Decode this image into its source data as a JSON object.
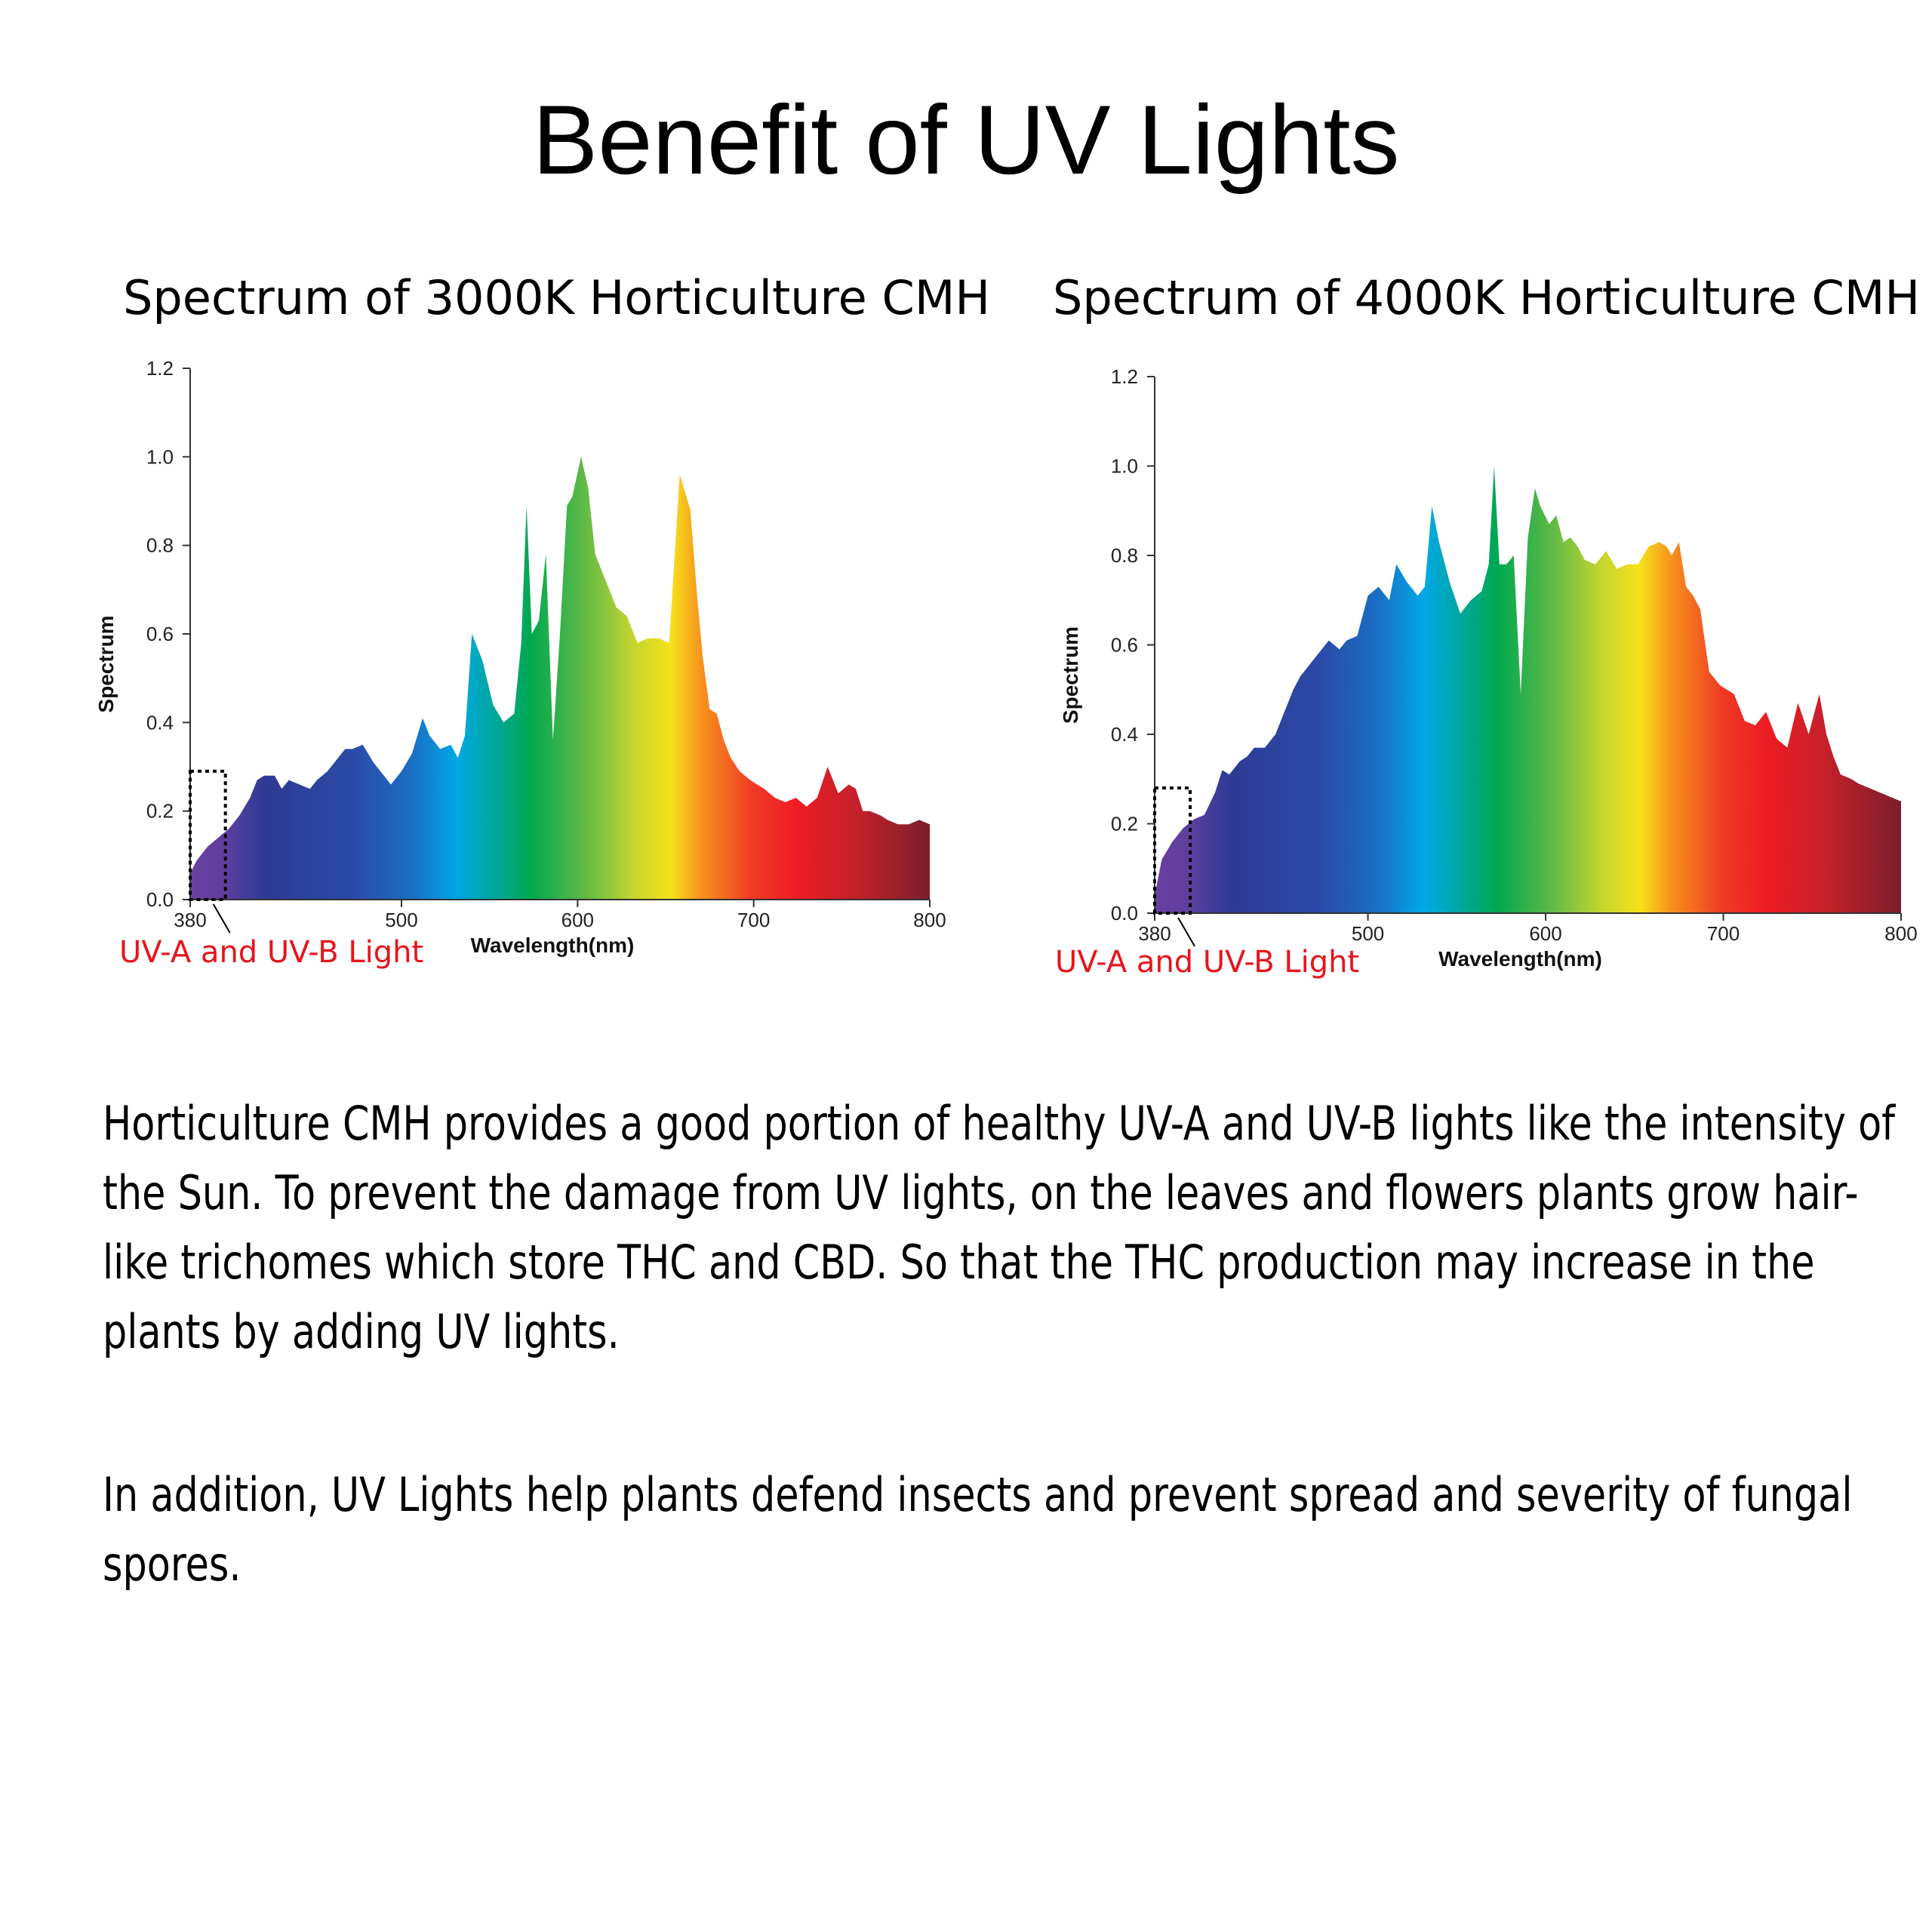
{
  "title": "Benefit of UV Lights",
  "paragraphs": [
    "Horticulture CMH provides a good portion of healthy UV-A and UV-B lights like the intensity of the Sun. To prevent the damage from UV lights, on the leaves and flowers plants grow hair-like trichomes which store THC and CBD. So that the THC production may increase in the plants by adding UV lights.",
    "In addition, UV Lights help plants defend insects and prevent spread and severity of fungal spores."
  ],
  "chart_data": [
    {
      "type": "area",
      "title": "Spectrum of 3000K Horticulture CMH",
      "xlabel": "Wavelength(nm)",
      "ylabel": "Spectrum",
      "xlim": [
        380,
        800
      ],
      "ylim": [
        0,
        1.2
      ],
      "xticks": [
        "380",
        "500",
        "600",
        "700",
        "800"
      ],
      "yticks": [
        "0.0",
        "0.2",
        "0.4",
        "0.6",
        "0.8",
        "1.0",
        "1.2"
      ],
      "annotation": "UV-A and UV-B Light",
      "annotation_color": "#e8141c",
      "highlight_range": [
        380,
        400
      ],
      "highlight_height": 0.29,
      "x": [
        380,
        384,
        390,
        396,
        402,
        408,
        414,
        418,
        422,
        428,
        432,
        436,
        442,
        448,
        452,
        458,
        462,
        468,
        472,
        478,
        484,
        488,
        494,
        500,
        506,
        512,
        516,
        522,
        528,
        532,
        536,
        540,
        546,
        552,
        558,
        564,
        568,
        571,
        574,
        578,
        582,
        586,
        590,
        594,
        597,
        602,
        606,
        610,
        614,
        618,
        622,
        628,
        634,
        640,
        646,
        652,
        658,
        664,
        668,
        671,
        675,
        679,
        683,
        687,
        692,
        698,
        702,
        706,
        712,
        718,
        724,
        730,
        736,
        742,
        748,
        754,
        758,
        762,
        766,
        772,
        776,
        782,
        788,
        794,
        800
      ],
      "y": [
        0.06,
        0.09,
        0.12,
        0.14,
        0.16,
        0.19,
        0.23,
        0.27,
        0.28,
        0.28,
        0.25,
        0.27,
        0.26,
        0.25,
        0.27,
        0.29,
        0.31,
        0.34,
        0.34,
        0.35,
        0.31,
        0.29,
        0.26,
        0.29,
        0.33,
        0.41,
        0.37,
        0.34,
        0.35,
        0.32,
        0.37,
        0.6,
        0.54,
        0.44,
        0.4,
        0.42,
        0.58,
        0.89,
        0.6,
        0.63,
        0.78,
        0.36,
        0.6,
        0.89,
        0.91,
        1.0,
        0.93,
        0.78,
        0.74,
        0.7,
        0.66,
        0.64,
        0.58,
        0.59,
        0.59,
        0.58,
        0.96,
        0.88,
        0.68,
        0.55,
        0.43,
        0.42,
        0.36,
        0.32,
        0.29,
        0.27,
        0.26,
        0.25,
        0.23,
        0.22,
        0.23,
        0.21,
        0.23,
        0.3,
        0.24,
        0.26,
        0.25,
        0.2,
        0.2,
        0.19,
        0.18,
        0.17,
        0.17,
        0.18,
        0.17
      ]
    },
    {
      "type": "area",
      "title": "Spectrum of 4000K Horticulture CMH",
      "xlabel": "Wavelength(nm)",
      "ylabel": "Spectrum",
      "xlim": [
        380,
        800
      ],
      "ylim": [
        0,
        1.2
      ],
      "xticks": [
        "380",
        "500",
        "600",
        "700",
        "800"
      ],
      "yticks": [
        "0.0",
        "0.2",
        "0.4",
        "0.6",
        "0.8",
        "1.0",
        "1.2"
      ],
      "annotation": "UV-A and UV-B Light",
      "annotation_color": "#e8141c",
      "highlight_range": [
        380,
        400
      ],
      "highlight_height": 0.28,
      "x": [
        380,
        384,
        390,
        396,
        402,
        408,
        414,
        418,
        422,
        428,
        432,
        436,
        442,
        448,
        452,
        458,
        462,
        468,
        472,
        478,
        484,
        488,
        494,
        500,
        506,
        512,
        516,
        522,
        528,
        532,
        536,
        540,
        546,
        552,
        558,
        564,
        568,
        571,
        574,
        578,
        582,
        586,
        590,
        594,
        597,
        602,
        606,
        610,
        614,
        618,
        622,
        628,
        634,
        640,
        646,
        652,
        658,
        664,
        668,
        671,
        675,
        679,
        683,
        687,
        692,
        698,
        702,
        706,
        712,
        718,
        724,
        730,
        736,
        742,
        748,
        754,
        758,
        762,
        766,
        772,
        776,
        782,
        788,
        794,
        800
      ],
      "y": [
        0.04,
        0.12,
        0.16,
        0.19,
        0.21,
        0.22,
        0.27,
        0.32,
        0.31,
        0.34,
        0.35,
        0.37,
        0.37,
        0.4,
        0.44,
        0.5,
        0.53,
        0.56,
        0.58,
        0.61,
        0.59,
        0.61,
        0.62,
        0.71,
        0.73,
        0.7,
        0.78,
        0.74,
        0.71,
        0.73,
        0.91,
        0.83,
        0.74,
        0.67,
        0.7,
        0.72,
        0.78,
        1.0,
        0.78,
        0.78,
        0.8,
        0.49,
        0.84,
        0.95,
        0.91,
        0.87,
        0.89,
        0.83,
        0.84,
        0.82,
        0.79,
        0.78,
        0.81,
        0.77,
        0.78,
        0.78,
        0.82,
        0.83,
        0.82,
        0.8,
        0.83,
        0.73,
        0.71,
        0.68,
        0.54,
        0.51,
        0.5,
        0.49,
        0.43,
        0.42,
        0.45,
        0.39,
        0.37,
        0.47,
        0.4,
        0.49,
        0.4,
        0.35,
        0.31,
        0.3,
        0.29,
        0.28,
        0.27,
        0.26,
        0.25
      ]
    }
  ]
}
